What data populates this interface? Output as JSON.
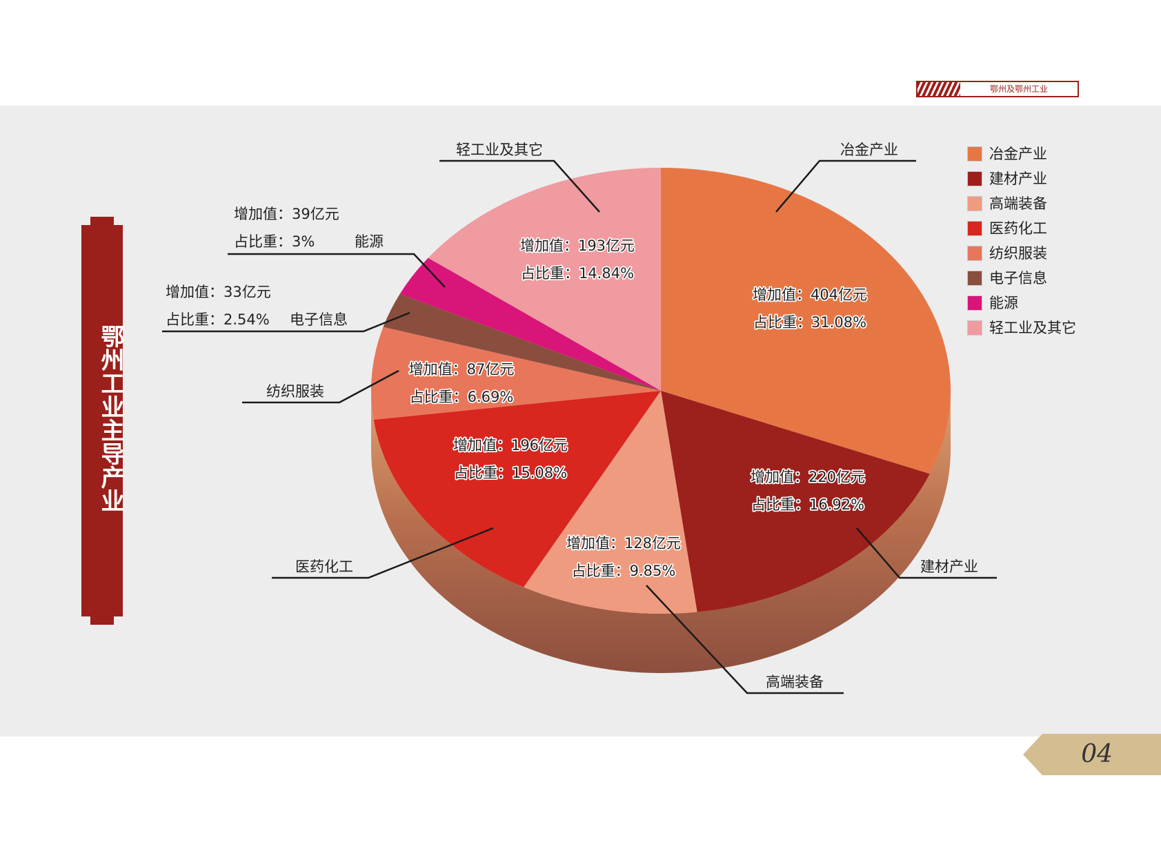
{
  "header": {
    "tab_text": "鄂州及鄂州工业"
  },
  "title": "鄂州工业主导产业",
  "page_number": "04",
  "chart_data": {
    "type": "pie",
    "title": "鄂州工业主导产业",
    "slices": [
      {
        "name": "冶金产业",
        "value": 404,
        "share": 31.08,
        "value_text": "增加值：404亿元",
        "share_text": "占比重：31.08%",
        "color": "#e67745"
      },
      {
        "name": "建材产业",
        "value": 220,
        "share": 16.92,
        "value_text": "增加值：220亿元",
        "share_text": "占比重：16.92%",
        "color": "#9c201c"
      },
      {
        "name": "高端装备",
        "value": 128,
        "share": 9.85,
        "value_text": "增加值：128亿元",
        "share_text": "占比重：9.85%",
        "color": "#ef9b80"
      },
      {
        "name": "医药化工",
        "value": 196,
        "share": 15.08,
        "value_text": "增加值：196亿元",
        "share_text": "占比重：15.08%",
        "color": "#d9261e"
      },
      {
        "name": "纺织服装",
        "value": 87,
        "share": 6.69,
        "value_text": "增加值：87亿元",
        "share_text": "占比重：6.69%",
        "color": "#e8765b"
      },
      {
        "name": "电子信息",
        "value": 33,
        "share": 2.54,
        "value_text": "增加值：33亿元",
        "share_text": "占比重：2.54%",
        "color": "#8a4e3f"
      },
      {
        "name": "能源",
        "value": 39,
        "share": 3,
        "value_text": "增加值：39亿元",
        "share_text": "占比重：3%",
        "color": "#d9157a"
      },
      {
        "name": "轻工业及其它",
        "value": 193,
        "share": 14.84,
        "value_text": "增加值：193亿元",
        "share_text": "占比重：14.84%",
        "color": "#ef9ba0"
      }
    ],
    "legend": [
      "冶金产业",
      "建材产业",
      "高端装备",
      "医药化工",
      "纺织服装",
      "电子信息",
      "能源",
      "轻工业及其它"
    ],
    "legend_position": "top-right"
  }
}
